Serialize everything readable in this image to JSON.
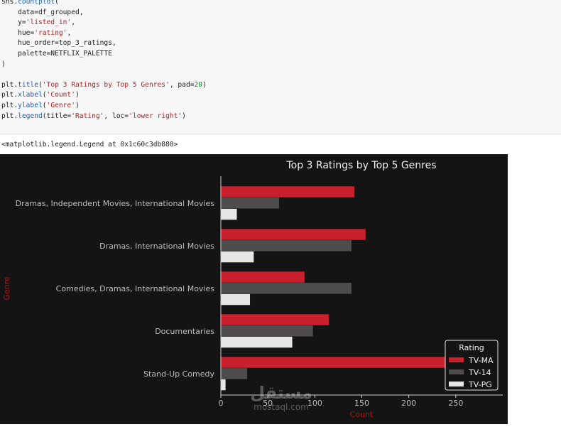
{
  "code_lines": [
    [
      {
        "t": "sns."
      },
      {
        "t": "countplot",
        "c": "fn"
      },
      {
        "t": "("
      }
    ],
    [
      {
        "t": "    data=df_grouped,"
      }
    ],
    [
      {
        "t": "    y="
      },
      {
        "t": "'listed_in'",
        "c": "str"
      },
      {
        "t": ","
      }
    ],
    [
      {
        "t": "    hue="
      },
      {
        "t": "'rating'",
        "c": "str"
      },
      {
        "t": ","
      }
    ],
    [
      {
        "t": "    hue_order=top_3_ratings,"
      }
    ],
    [
      {
        "t": "    palette=NETFLIX_PALETTE"
      }
    ],
    [
      {
        "t": ")"
      }
    ],
    [
      {
        "t": ""
      }
    ],
    [
      {
        "t": "plt."
      },
      {
        "t": "title",
        "c": "fn"
      },
      {
        "t": "("
      },
      {
        "t": "'Top 3 Ratings by Top 5 Genres'",
        "c": "str"
      },
      {
        "t": ", pad="
      },
      {
        "t": "20",
        "c": "num"
      },
      {
        "t": ")"
      }
    ],
    [
      {
        "t": "plt."
      },
      {
        "t": "xlabel",
        "c": "fn"
      },
      {
        "t": "("
      },
      {
        "t": "'Count'",
        "c": "str"
      },
      {
        "t": ")"
      }
    ],
    [
      {
        "t": "plt."
      },
      {
        "t": "ylabel",
        "c": "fn"
      },
      {
        "t": "("
      },
      {
        "t": "'Genre'",
        "c": "str"
      },
      {
        "t": ")"
      }
    ],
    [
      {
        "t": "plt."
      },
      {
        "t": "legend",
        "c": "fn"
      },
      {
        "t": "(title="
      },
      {
        "t": "'Rating'",
        "c": "str"
      },
      {
        "t": ", loc="
      },
      {
        "t": "'lower right'",
        "c": "str"
      },
      {
        "t": ")"
      }
    ]
  ],
  "output_text": "<matplotlib.legend.Legend at 0x1c60c3db880>",
  "watermark": {
    "arabic": "مستقل",
    "latin": "mostaql.com"
  },
  "chart_data": {
    "type": "bar",
    "orientation": "horizontal",
    "title": "Top 3 Ratings by Top 5 Genres",
    "xlabel": "Count",
    "ylabel": "Genre",
    "categories": [
      "Dramas, Independent Movies, International Movies",
      "Dramas, International Movies",
      "Comedies, Dramas, International Movies",
      "Documentaries",
      "Stand-Up Comedy"
    ],
    "series": [
      {
        "name": "TV-MA",
        "values": [
          142,
          154,
          89,
          115,
          270
        ]
      },
      {
        "name": "TV-14",
        "values": [
          62,
          139,
          139,
          98,
          28
        ]
      },
      {
        "name": "TV-PG",
        "values": [
          17,
          35,
          31,
          76,
          5
        ]
      }
    ],
    "xlim": [
      0,
      300
    ],
    "xticks": [
      0,
      50,
      100,
      150,
      200,
      250
    ],
    "legend": {
      "title": "Rating",
      "placement": "lower right"
    },
    "colors": {
      "series": [
        "#c8202c",
        "#4f4c4c",
        "#e6e6e6"
      ],
      "background": "#141414",
      "axis_label": "#b01515",
      "tick_text": "#bdbdbd",
      "title_text": "#f0f0f0"
    }
  }
}
